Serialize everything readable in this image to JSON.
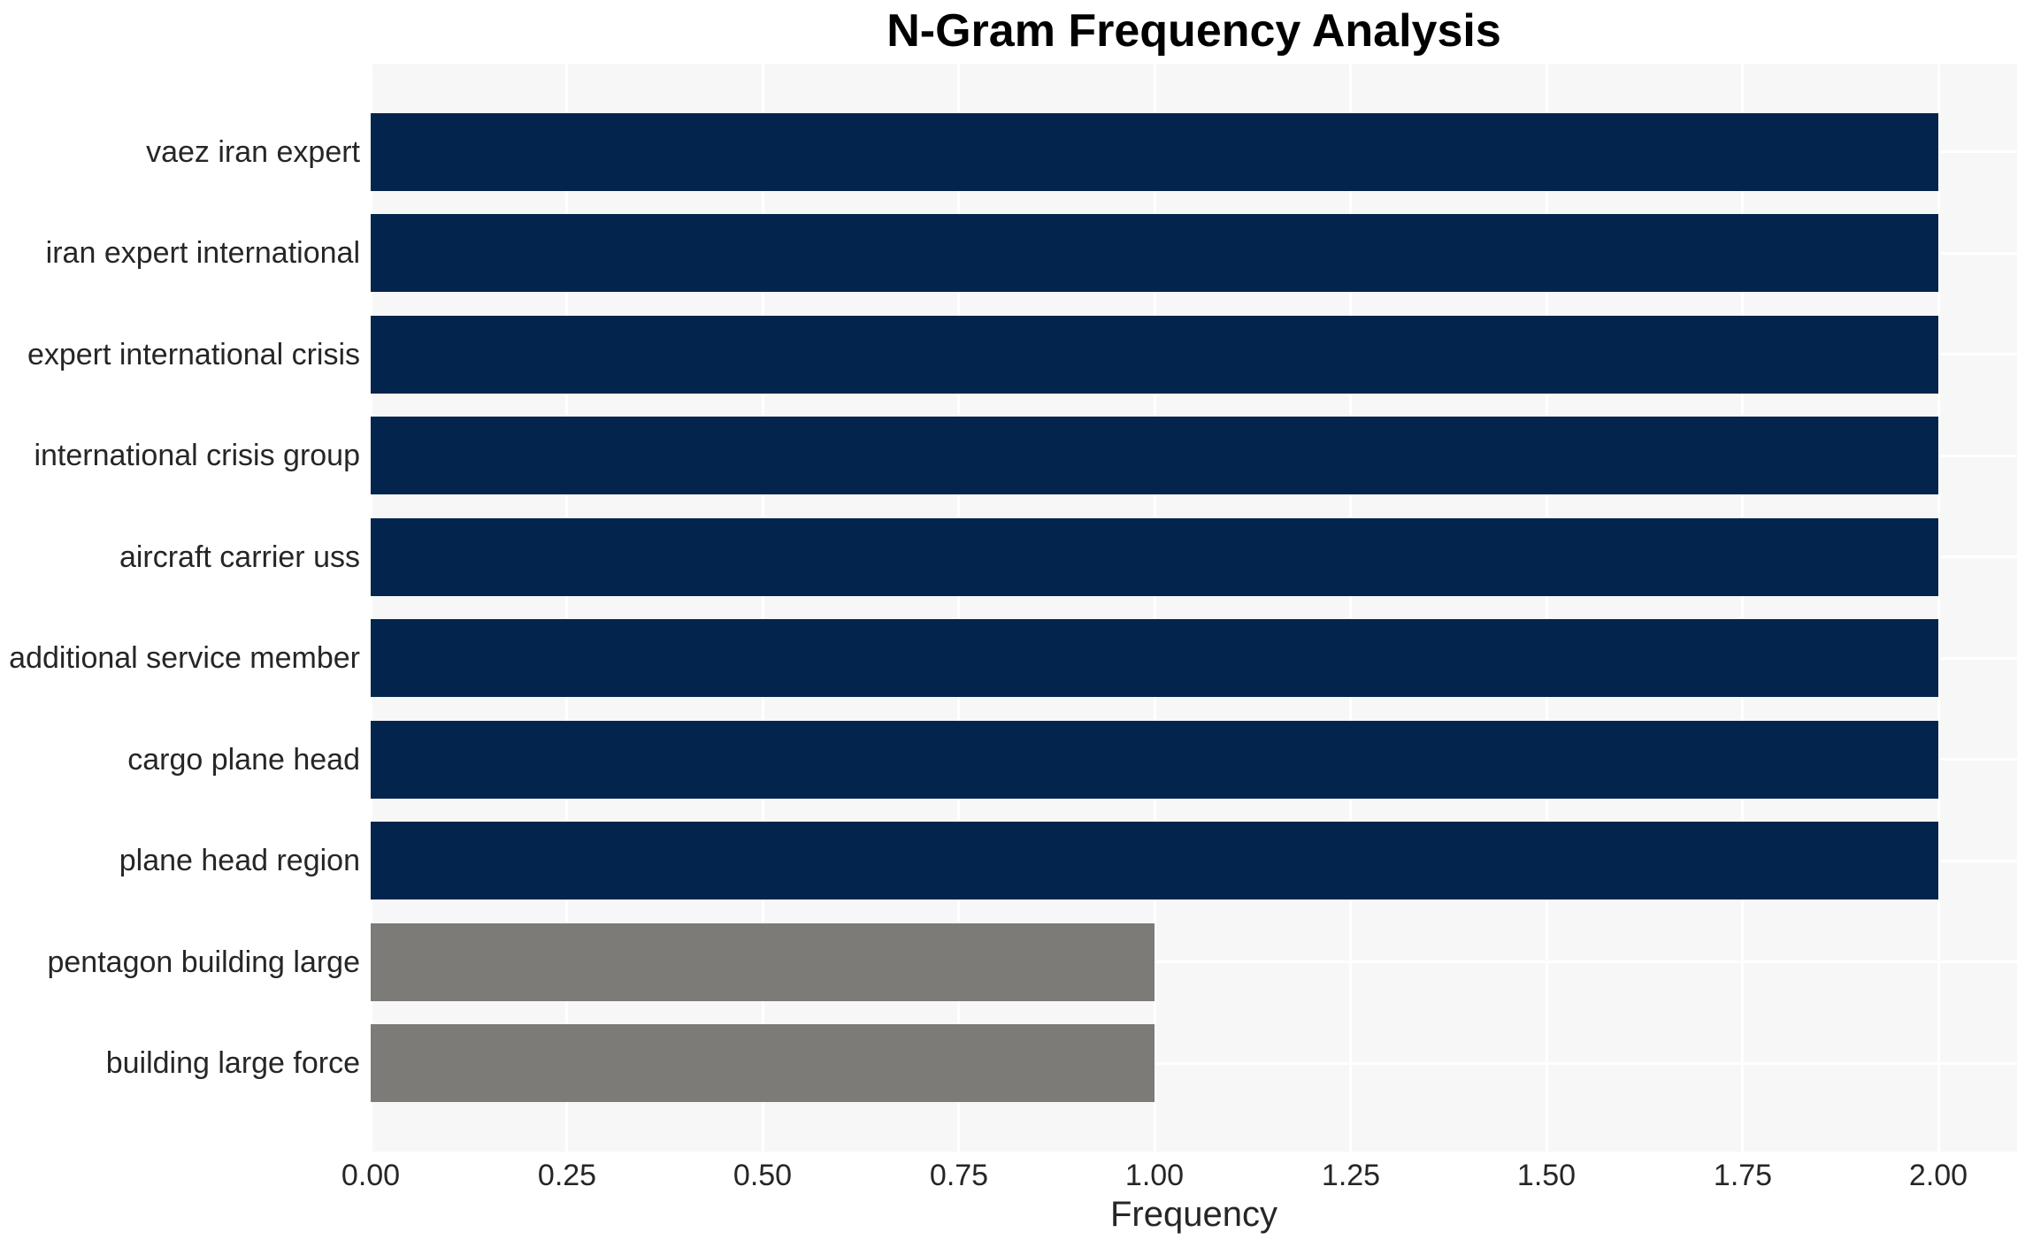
{
  "chart_data": {
    "type": "bar",
    "orientation": "horizontal",
    "title": "N-Gram Frequency Analysis",
    "xlabel": "Frequency",
    "ylabel": "",
    "categories": [
      "vaez iran expert",
      "iran expert international",
      "expert international crisis",
      "international crisis group",
      "aircraft carrier uss",
      "additional service member",
      "cargo plane head",
      "plane head region",
      "pentagon building large",
      "building large force"
    ],
    "values": [
      2,
      2,
      2,
      2,
      2,
      2,
      2,
      2,
      1,
      1
    ],
    "bar_colors": [
      "#03254d",
      "#03254d",
      "#03254d",
      "#03254d",
      "#03254d",
      "#03254d",
      "#03254d",
      "#03254d",
      "#7c7b77",
      "#7c7b77"
    ],
    "xlim": [
      0,
      2.1
    ],
    "x_ticks": [
      0,
      0.25,
      0.5,
      0.75,
      1.0,
      1.25,
      1.5,
      1.75,
      2.0
    ],
    "x_tick_labels": [
      "0.00",
      "0.25",
      "0.50",
      "0.75",
      "1.00",
      "1.25",
      "1.50",
      "1.75",
      "2.00"
    ],
    "grid": true,
    "legend": false,
    "colors": {
      "plot_background": "#f7f7f7",
      "grid": "#ffffff",
      "text": "#262626",
      "title": "#000000",
      "bar_primary": "#03254d",
      "bar_secondary": "#7c7b77"
    }
  }
}
